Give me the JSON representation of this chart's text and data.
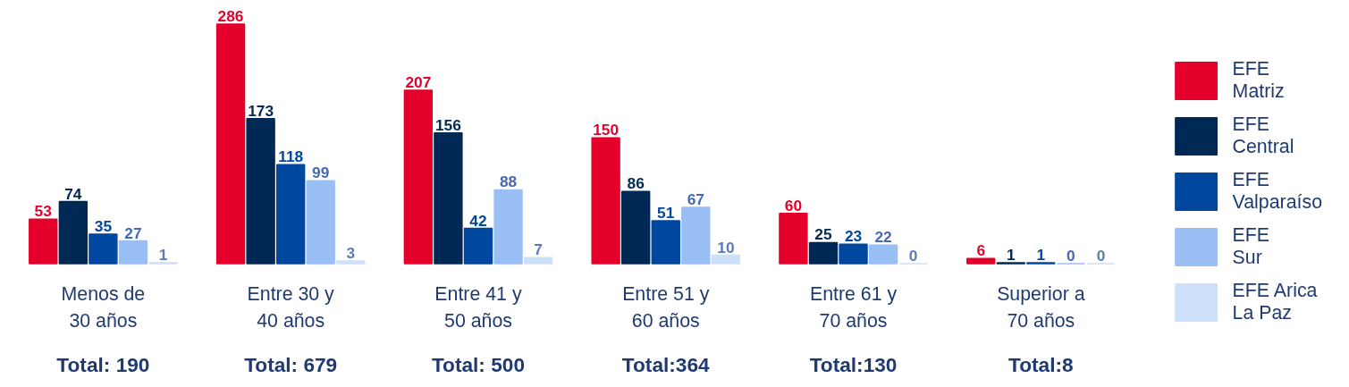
{
  "chart_data": {
    "type": "bar",
    "categories": [
      "Menos de\n30 años",
      "Entre 30 y\n40 años",
      "Entre 41 y\n50 años",
      "Entre 51 y\n60 años",
      "Entre 61 y\n70 años",
      "Superior a\n70 años"
    ],
    "series": [
      {
        "name": "EFE\nMatriz",
        "color": "#e4002b",
        "values": [
          53,
          286,
          207,
          150,
          60,
          6
        ]
      },
      {
        "name": "EFE\nCentral",
        "color": "#002855",
        "values": [
          74,
          173,
          156,
          86,
          25,
          1
        ]
      },
      {
        "name": "EFE\nValparaíso",
        "color": "#0047a0",
        "values": [
          35,
          118,
          42,
          51,
          23,
          1
        ]
      },
      {
        "name": "EFE\nSur",
        "color": "#99bff5",
        "values": [
          27,
          99,
          88,
          67,
          22,
          0
        ]
      },
      {
        "name": "EFE Arica\nLa Paz",
        "color": "#cce0fa",
        "values": [
          1,
          3,
          7,
          10,
          0,
          0
        ]
      }
    ],
    "data_labels": true,
    "annotations": [
      "Total: 190",
      "Total: 679",
      "Total: 500",
      "Total:364",
      "Total:130",
      "Total:8"
    ],
    "legend": "right",
    "grid": false
  }
}
